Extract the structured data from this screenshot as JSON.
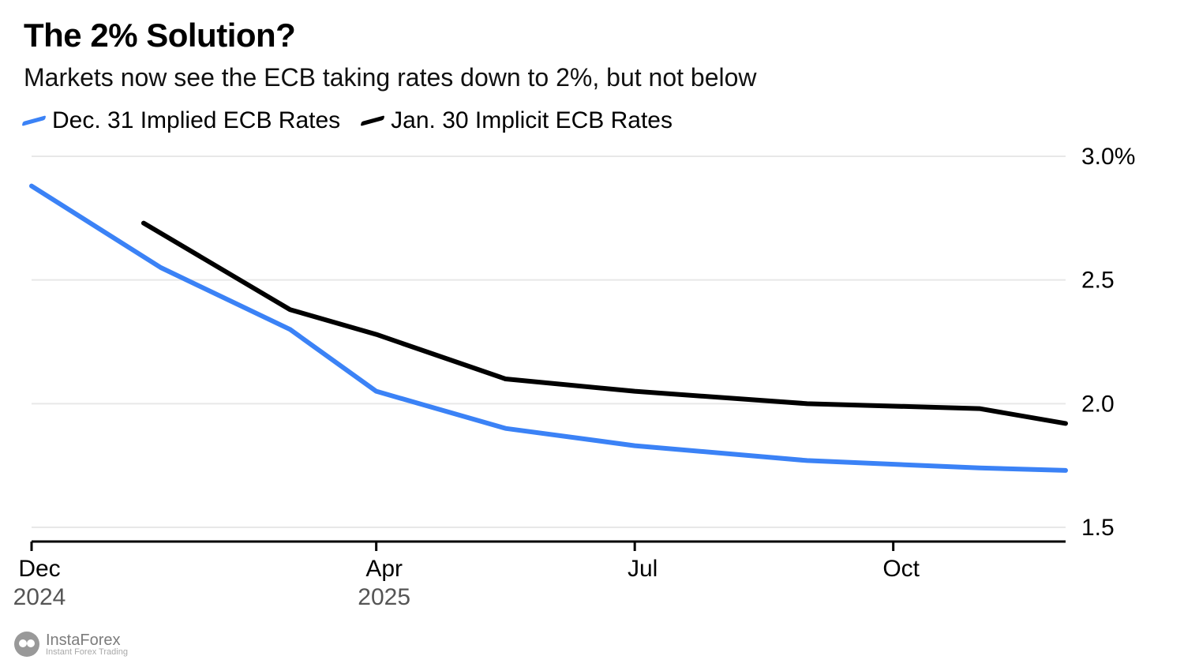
{
  "title": "The 2% Solution?",
  "subtitle": "Markets now see the ECB taking rates down to 2%, but not below",
  "legend": {
    "series1": {
      "label": "Dec. 31 Implied ECB Rates",
      "color": "#3b82f6"
    },
    "series2": {
      "label": "Jan. 30 Implicit ECB Rates",
      "color": "#000000"
    }
  },
  "chart": {
    "type": "line",
    "background_color": "#ffffff",
    "grid_color": "#e8e8e8",
    "axis_color": "#000000",
    "line_width": 6,
    "y": {
      "min": 1.5,
      "max": 3.0,
      "ticks": [
        3.0,
        2.5,
        2.0,
        1.5
      ],
      "tick_labels": [
        "3.0%",
        "2.5",
        "2.0",
        "1.5"
      ],
      "label_fontsize": 30
    },
    "x": {
      "min": 0,
      "max": 12,
      "ticks": [
        0,
        4,
        7,
        10
      ],
      "tick_labels": [
        "Dec",
        "Apr",
        "Jul",
        "Oct"
      ],
      "tick_sublabels": [
        "2024",
        "2025",
        "",
        ""
      ],
      "label_fontsize": 30
    },
    "series": [
      {
        "name": "dec31",
        "color": "#3b82f6",
        "points": [
          {
            "x": 0.0,
            "y": 2.88
          },
          {
            "x": 1.5,
            "y": 2.55
          },
          {
            "x": 3.0,
            "y": 2.3
          },
          {
            "x": 4.0,
            "y": 2.05
          },
          {
            "x": 5.5,
            "y": 1.9
          },
          {
            "x": 7.0,
            "y": 1.83
          },
          {
            "x": 9.0,
            "y": 1.77
          },
          {
            "x": 11.0,
            "y": 1.74
          },
          {
            "x": 12.0,
            "y": 1.73
          }
        ]
      },
      {
        "name": "jan30",
        "color": "#000000",
        "points": [
          {
            "x": 1.3,
            "y": 2.73
          },
          {
            "x": 3.0,
            "y": 2.38
          },
          {
            "x": 4.0,
            "y": 2.28
          },
          {
            "x": 5.5,
            "y": 2.1
          },
          {
            "x": 7.0,
            "y": 2.05
          },
          {
            "x": 9.0,
            "y": 2.0
          },
          {
            "x": 11.0,
            "y": 1.98
          },
          {
            "x": 12.0,
            "y": 1.92
          }
        ]
      }
    ]
  },
  "watermark": {
    "brand": "InstaForex",
    "tagline": "Instant Forex Trading"
  }
}
